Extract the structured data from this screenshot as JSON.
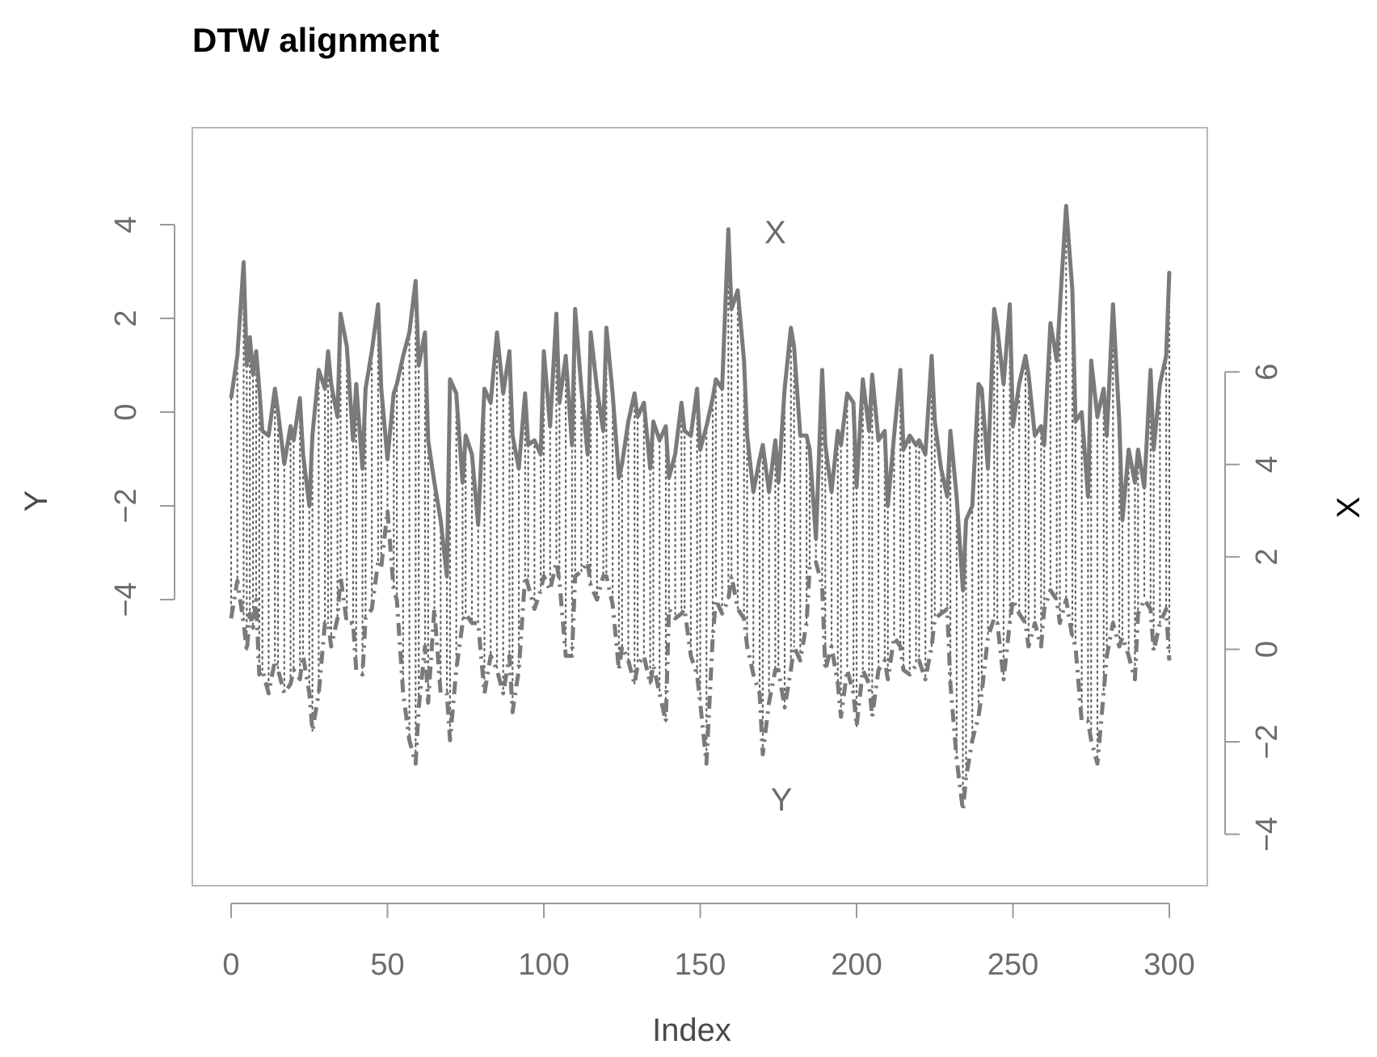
{
  "chart_data": {
    "type": "line",
    "title": "DTW alignment",
    "xlabel": "Index",
    "ylabel_left": "Y",
    "ylabel_right": "X",
    "xlim": [
      0,
      300
    ],
    "x_ticks": [
      "0",
      "50",
      "100",
      "150",
      "200",
      "250",
      "300"
    ],
    "left_axis": {
      "label": "Y",
      "ticks": [
        "4",
        "2",
        "0",
        "−2",
        "−4"
      ],
      "tick_values": [
        4,
        2,
        0,
        -2,
        -4
      ],
      "ylim": [
        -9.5,
        5
      ]
    },
    "right_axis": {
      "label": "X",
      "ticks": [
        "6",
        "4",
        "2",
        "0",
        "−2",
        "−4"
      ],
      "tick_values": [
        6,
        4,
        2,
        0,
        -2,
        -4
      ],
      "ylim": [
        -4.5,
        10.2
      ]
    },
    "annotations": [
      {
        "text": "X",
        "x": 174,
        "y_left": 3.6
      },
      {
        "text": "Y",
        "x": 176,
        "y_left": -8.5
      }
    ],
    "grid": false,
    "series": [
      {
        "name": "X",
        "style": "solid",
        "axis": "left",
        "x": [
          0,
          2,
          4,
          5,
          6,
          7,
          8,
          9,
          10,
          12,
          14,
          15,
          17,
          19,
          20,
          22,
          23,
          25,
          26,
          28,
          30,
          31,
          32,
          34,
          35,
          37,
          39,
          40,
          42,
          43,
          45,
          47,
          48,
          50,
          52,
          53,
          55,
          57,
          59,
          60,
          62,
          63,
          65,
          67,
          69,
          70,
          72,
          74,
          75,
          77,
          79,
          81,
          83,
          85,
          87,
          89,
          90,
          92,
          94,
          95,
          97,
          99,
          100,
          102,
          104,
          105,
          107,
          109,
          110,
          112,
          114,
          115,
          117,
          119,
          120,
          122,
          124,
          125,
          127,
          129,
          130,
          132,
          134,
          135,
          137,
          139,
          140,
          142,
          144,
          145,
          147,
          149,
          150,
          152,
          154,
          155,
          157,
          159,
          160,
          162,
          164,
          165,
          167,
          169,
          170,
          172,
          174,
          175,
          177,
          179,
          180,
          182,
          184,
          185,
          187,
          189,
          190,
          192,
          194,
          195,
          197,
          199,
          200,
          202,
          204,
          205,
          207,
          209,
          210,
          212,
          214,
          215,
          217,
          219,
          220,
          222,
          224,
          225,
          227,
          229,
          230,
          232,
          234,
          235,
          237,
          239,
          240,
          242,
          244,
          245,
          247,
          249,
          250,
          252,
          254,
          255,
          257,
          259,
          260,
          262,
          264,
          265,
          267,
          269,
          270,
          272,
          274,
          275,
          277,
          279,
          280,
          282,
          284,
          285,
          287,
          289,
          290,
          292,
          294,
          295,
          297,
          299,
          300
        ],
        "values": [
          0.3,
          1.2,
          3.2,
          1.0,
          1.6,
          0.8,
          1.3,
          0.5,
          -0.4,
          -0.5,
          0.5,
          0.0,
          -1.1,
          -0.3,
          -0.6,
          0.3,
          -0.9,
          -2.0,
          -0.5,
          0.9,
          0.5,
          1.3,
          0.6,
          -0.1,
          2.1,
          1.4,
          -0.6,
          0.6,
          -1.2,
          0.5,
          1.3,
          2.3,
          0.5,
          -1.0,
          0.4,
          0.6,
          1.2,
          1.7,
          2.8,
          1.0,
          1.7,
          -0.6,
          -1.5,
          -2.3,
          -3.5,
          0.7,
          0.4,
          -1.5,
          -0.5,
          -0.9,
          -2.4,
          0.5,
          0.2,
          1.7,
          0.4,
          1.3,
          -0.5,
          -1.2,
          0.4,
          -0.7,
          -0.6,
          -0.9,
          1.3,
          -0.3,
          2.1,
          0.2,
          1.2,
          -0.7,
          2.2,
          0.5,
          -0.9,
          1.7,
          0.5,
          -0.4,
          1.8,
          0.4,
          -1.4,
          -1.1,
          -0.2,
          0.4,
          -0.1,
          0.2,
          -1.2,
          -0.2,
          -0.6,
          -0.3,
          -1.4,
          -0.9,
          0.2,
          -0.4,
          -0.5,
          0.5,
          -0.8,
          -0.3,
          0.3,
          0.7,
          0.5,
          3.9,
          2.2,
          2.6,
          1.1,
          -0.5,
          -1.7,
          -1.0,
          -0.7,
          -1.7,
          -0.6,
          -1.5,
          0.5,
          1.8,
          1.4,
          -0.5,
          -0.5,
          -0.8,
          -2.7,
          0.9,
          -0.7,
          -1.7,
          -0.4,
          -0.7,
          0.4,
          0.2,
          -1.6,
          0.7,
          -0.4,
          0.8,
          -0.6,
          -0.4,
          -2.0,
          -0.5,
          0.9,
          -0.8,
          -0.5,
          -0.7,
          -0.6,
          -0.9,
          1.2,
          -0.2,
          -1.2,
          -1.8,
          -0.4,
          -1.8,
          -3.8,
          -2.3,
          -2.0,
          0.6,
          0.5,
          -1.2,
          2.2,
          1.8,
          0.6,
          2.3,
          -0.3,
          0.6,
          1.2,
          0.8,
          -0.5,
          -0.3,
          -0.7,
          1.9,
          1.1,
          2.2,
          4.4,
          2.6,
          -0.2,
          0.0,
          -1.8,
          1.1,
          -0.1,
          0.5,
          -0.5,
          2.3,
          -0.2,
          -2.3,
          -0.8,
          -1.5,
          -0.8,
          -1.6,
          0.9,
          -0.8,
          0.6,
          1.2,
          3.0
        ]
      },
      {
        "name": "Y",
        "style": "dashed",
        "axis": "left",
        "x": [
          0,
          2,
          4,
          5,
          6,
          7,
          8,
          9,
          10,
          12,
          14,
          15,
          17,
          19,
          20,
          22,
          23,
          25,
          26,
          28,
          30,
          31,
          32,
          34,
          35,
          37,
          39,
          40,
          42,
          43,
          45,
          47,
          48,
          50,
          52,
          53,
          55,
          57,
          59,
          60,
          62,
          63,
          65,
          67,
          69,
          70,
          72,
          74,
          75,
          77,
          79,
          81,
          83,
          85,
          87,
          89,
          90,
          92,
          94,
          95,
          97,
          99,
          100,
          102,
          104,
          105,
          107,
          109,
          110,
          112,
          114,
          115,
          117,
          119,
          120,
          122,
          124,
          125,
          127,
          129,
          130,
          132,
          134,
          135,
          137,
          139,
          140,
          142,
          144,
          145,
          147,
          149,
          150,
          152,
          154,
          155,
          157,
          159,
          160,
          162,
          164,
          165,
          167,
          169,
          170,
          172,
          174,
          175,
          177,
          179,
          180,
          182,
          184,
          185,
          187,
          189,
          190,
          192,
          194,
          195,
          197,
          199,
          200,
          202,
          204,
          205,
          207,
          209,
          210,
          212,
          214,
          215,
          217,
          219,
          220,
          222,
          224,
          225,
          227,
          229,
          230,
          232,
          234,
          235,
          237,
          239,
          240,
          242,
          244,
          245,
          247,
          249,
          250,
          252,
          254,
          255,
          257,
          259,
          260,
          262,
          264,
          265,
          267,
          269,
          270,
          272,
          274,
          275,
          277,
          279,
          280,
          282,
          284,
          285,
          287,
          289,
          290,
          292,
          294,
          295,
          297,
          299,
          300
        ],
        "values": [
          -4.4,
          -3.6,
          -4.5,
          -5.1,
          -4.3,
          -4.6,
          -4.0,
          -5.6,
          -5.5,
          -6.0,
          -5.3,
          -5.5,
          -6.0,
          -5.8,
          -5.5,
          -5.7,
          -5.2,
          -6.0,
          -6.8,
          -6.0,
          -4.5,
          -4.5,
          -5.0,
          -4.4,
          -3.5,
          -4.5,
          -4.5,
          -5.5,
          -5.6,
          -4.4,
          -4.2,
          -3.2,
          -3.3,
          -2.1,
          -3.8,
          -4.0,
          -6.0,
          -7.0,
          -7.5,
          -6.3,
          -5.0,
          -6.2,
          -4.2,
          -6.0,
          -6.0,
          -7.0,
          -5.5,
          -4.5,
          -4.3,
          -4.5,
          -4.5,
          -6.0,
          -5.2,
          -5.5,
          -6.0,
          -5.2,
          -6.4,
          -5.5,
          -3.5,
          -3.7,
          -4.2,
          -3.8,
          -3.5,
          -3.8,
          -3.2,
          -3.6,
          -5.2,
          -5.2,
          -3.5,
          -3.4,
          -3.2,
          -3.7,
          -4.0,
          -3.5,
          -3.5,
          -4.1,
          -5.5,
          -5.0,
          -5.3,
          -5.8,
          -5.4,
          -5.2,
          -5.8,
          -5.4,
          -6.0,
          -6.6,
          -4.2,
          -4.4,
          -4.3,
          -4.2,
          -5.2,
          -5.6,
          -6.2,
          -7.5,
          -4.8,
          -4.0,
          -4.3,
          -4.0,
          -3.5,
          -4.2,
          -4.4,
          -5.0,
          -5.6,
          -6.0,
          -7.3,
          -6.2,
          -5.5,
          -5.5,
          -6.3,
          -5.5,
          -5.0,
          -5.3,
          -4.5,
          -3.3,
          -3.2,
          -3.7,
          -5.5,
          -5.0,
          -5.8,
          -6.5,
          -5.5,
          -6.0,
          -6.7,
          -5.5,
          -5.8,
          -6.5,
          -5.5,
          -5.3,
          -5.7,
          -4.8,
          -5.0,
          -5.5,
          -5.6,
          -5.4,
          -5.3,
          -5.7,
          -5.0,
          -4.4,
          -4.3,
          -4.2,
          -5.8,
          -7.4,
          -8.5,
          -7.8,
          -7.0,
          -6.5,
          -6.0,
          -4.8,
          -4.4,
          -4.5,
          -5.7,
          -4.5,
          -4.0,
          -4.3,
          -4.5,
          -5.0,
          -4.5,
          -5.0,
          -4.2,
          -3.8,
          -4.0,
          -4.5,
          -4.0,
          -4.8,
          -5.0,
          -6.6,
          -6.6,
          -7.0,
          -7.5,
          -6.0,
          -5.2,
          -4.5,
          -5.0,
          -4.8,
          -5.2,
          -5.7,
          -4.3,
          -4.0,
          -4.2,
          -5.1,
          -4.5,
          -4.2,
          -5.3
        ]
      }
    ]
  }
}
